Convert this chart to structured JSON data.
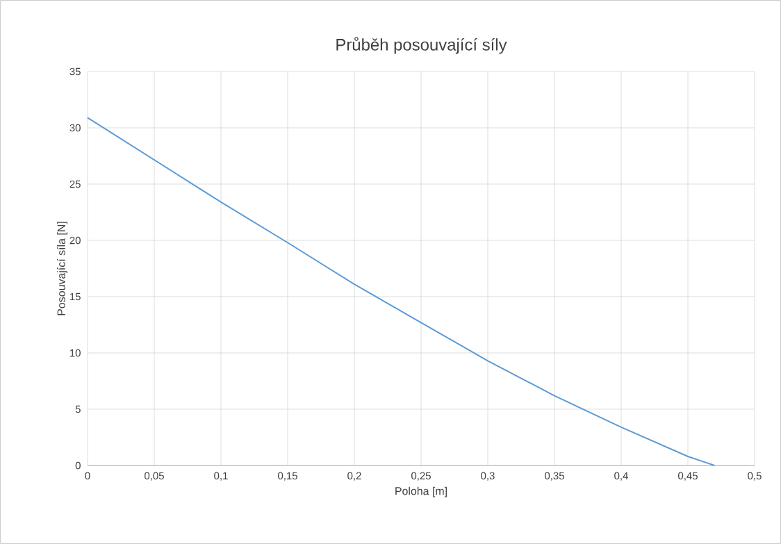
{
  "chart_data": {
    "type": "line",
    "title": "Průběh posouvající síly",
    "xlabel": "Poloha [m]",
    "ylabel": "Posouvající síla [N]",
    "x": [
      0,
      0.05,
      0.1,
      0.15,
      0.2,
      0.25,
      0.3,
      0.35,
      0.4,
      0.45,
      0.47
    ],
    "series": [
      {
        "color": "#5b9bd5",
        "values": [
          30.9,
          27.15,
          23.4,
          19.8,
          16.1,
          12.7,
          9.3,
          6.2,
          3.4,
          0.8,
          0
        ]
      }
    ],
    "xlim": [
      0,
      0.5
    ],
    "ylim": [
      0,
      35
    ],
    "xticks": [
      0,
      {
        "value": 0.05,
        "label": "0,05"
      },
      {
        "value": 0.1,
        "label": "0,1"
      },
      {
        "value": 0.15,
        "label": "0,15"
      },
      {
        "value": 0.2,
        "label": "0,2"
      },
      {
        "value": 0.25,
        "label": "0,25"
      },
      {
        "value": 0.3,
        "label": "0,3"
      },
      {
        "value": 0.35,
        "label": "0,35"
      },
      {
        "value": 0.4,
        "label": "0,4"
      },
      {
        "value": 0.45,
        "label": "0,45"
      },
      {
        "value": 0.5,
        "label": "0,5"
      }
    ],
    "yticks": [
      0,
      5,
      10,
      15,
      20,
      25,
      30,
      35
    ],
    "grid": true
  }
}
